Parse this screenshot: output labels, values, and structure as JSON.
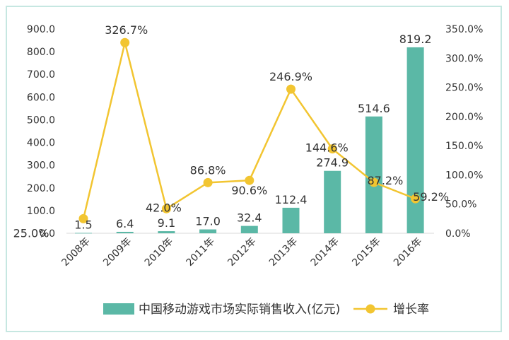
{
  "chart_data": {
    "type": "bar+line",
    "categories": [
      "2008年",
      "2009年",
      "2010年",
      "2011年",
      "2012年",
      "2013年",
      "2014年",
      "2015年",
      "2016年"
    ],
    "series": [
      {
        "name": "中国移动游戏市场实际销售收入(亿元)",
        "type": "bar",
        "axis": "left",
        "values": [
          1.5,
          6.4,
          9.1,
          17.0,
          32.4,
          112.4,
          274.9,
          514.6,
          819.2
        ],
        "labels": [
          "1.5",
          "6.4",
          "9.1",
          "17.0",
          "32.4",
          "112.4",
          "274.9",
          "514.6",
          "819.2"
        ],
        "color": "#5bb8a6"
      },
      {
        "name": "增长率",
        "type": "line",
        "axis": "right",
        "values": [
          25.0,
          326.7,
          42.0,
          86.8,
          90.6,
          246.9,
          144.6,
          87.2,
          59.2
        ],
        "labels": [
          "25.0%",
          "326.7%",
          "42.0%",
          "86.8%",
          "90.6%",
          "246.9%",
          "144.6%",
          "87.2%",
          "59.2%"
        ],
        "color": "#f2c531"
      }
    ],
    "y_left": {
      "min": 0,
      "max": 900,
      "ticks": [
        "0.0",
        "100.0",
        "200.0",
        "300.0",
        "400.0",
        "500.0",
        "600.0",
        "700.0",
        "800.0",
        "900.0"
      ]
    },
    "y_right": {
      "min": 0,
      "max": 350,
      "ticks": [
        "0.0%",
        "50.0%",
        "100.0%",
        "150.0%",
        "200.0%",
        "250.0%",
        "300.0%",
        "350.0%"
      ]
    },
    "legend_position": "bottom",
    "grid": false
  }
}
